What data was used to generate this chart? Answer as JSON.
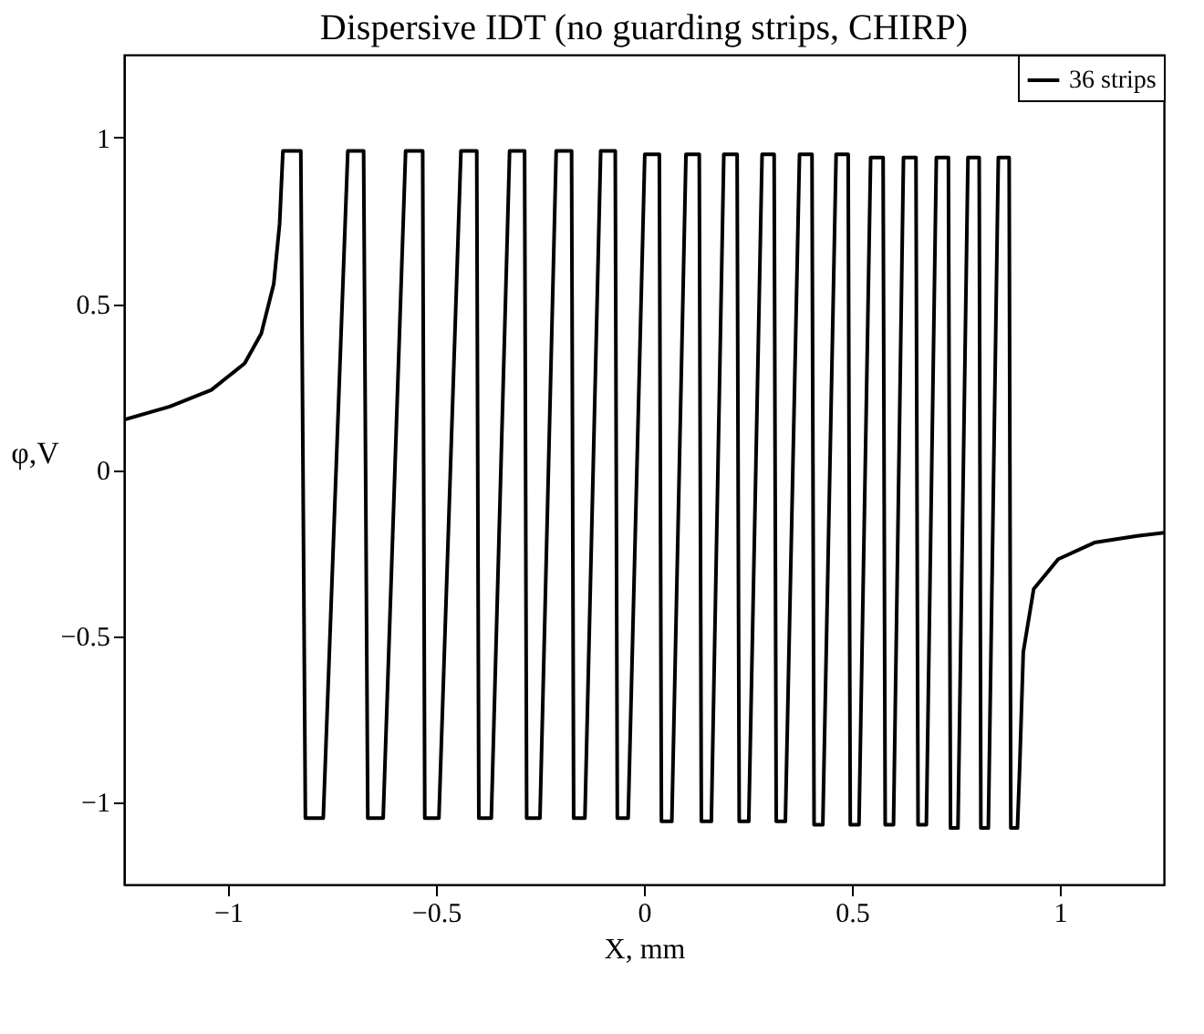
{
  "chart_data": {
    "type": "line",
    "title": "Dispersive IDT (no guarding strips, CHIRP)",
    "xlabel": "X, mm",
    "ylabel": "φ,V",
    "xlim": [
      -1.25,
      1.25
    ],
    "ylim": [
      -1.25,
      1.25
    ],
    "xticks": [
      -1,
      -0.5,
      0,
      0.5,
      1
    ],
    "yticks": [
      -1,
      -0.5,
      0,
      0.5,
      1
    ],
    "grid": false,
    "legend": "top right",
    "marker": "none",
    "line_style": "solid",
    "series": [
      {
        "name": "36 strips",
        "color": "#000000",
        "x": [
          -1.25,
          -1.14,
          -1.04,
          -0.96,
          -0.92,
          -0.89,
          -0.876,
          -0.868,
          -0.825,
          -0.814,
          -0.771,
          -0.712,
          -0.674,
          -0.664,
          -0.627,
          -0.573,
          -0.532,
          -0.527,
          -0.493,
          -0.44,
          -0.402,
          -0.397,
          -0.367,
          -0.323,
          -0.287,
          -0.282,
          -0.25,
          -0.211,
          -0.174,
          -0.169,
          -0.142,
          -0.104,
          -0.069,
          -0.064,
          -0.038,
          0.002,
          0.037,
          0.042,
          0.067,
          0.101,
          0.133,
          0.138,
          0.162,
          0.192,
          0.224,
          0.229,
          0.252,
          0.284,
          0.313,
          0.318,
          0.34,
          0.374,
          0.404,
          0.409,
          0.43,
          0.462,
          0.491,
          0.496,
          0.517,
          0.545,
          0.575,
          0.58,
          0.6,
          0.624,
          0.654,
          0.659,
          0.679,
          0.703,
          0.732,
          0.737,
          0.755,
          0.779,
          0.806,
          0.81,
          0.828,
          0.852,
          0.878,
          0.882,
          0.898,
          0.903,
          0.912,
          0.937,
          0.996,
          1.083,
          1.186,
          1.25
        ],
        "values": [
          0.15,
          0.19,
          0.24,
          0.32,
          0.41,
          0.56,
          0.74,
          0.96,
          0.96,
          -1.05,
          -1.05,
          0.96,
          0.96,
          -1.05,
          -1.05,
          0.96,
          0.96,
          -1.05,
          -1.05,
          0.96,
          0.96,
          -1.05,
          -1.05,
          0.96,
          0.96,
          -1.05,
          -1.05,
          0.96,
          0.96,
          -1.05,
          -1.05,
          0.96,
          0.96,
          -1.05,
          -1.05,
          0.95,
          0.95,
          -1.06,
          -1.06,
          0.95,
          0.95,
          -1.06,
          -1.06,
          0.95,
          0.95,
          -1.06,
          -1.06,
          0.95,
          0.95,
          -1.06,
          -1.06,
          0.95,
          0.95,
          -1.07,
          -1.07,
          0.95,
          0.95,
          -1.07,
          -1.07,
          0.94,
          0.94,
          -1.07,
          -1.07,
          0.94,
          0.94,
          -1.07,
          -1.07,
          0.94,
          0.94,
          -1.08,
          -1.08,
          0.94,
          0.94,
          -1.08,
          -1.08,
          0.94,
          0.94,
          -1.08,
          -1.08,
          -0.91,
          -0.55,
          -0.36,
          -0.27,
          -0.22,
          -0.2,
          -0.19
        ]
      }
    ]
  }
}
